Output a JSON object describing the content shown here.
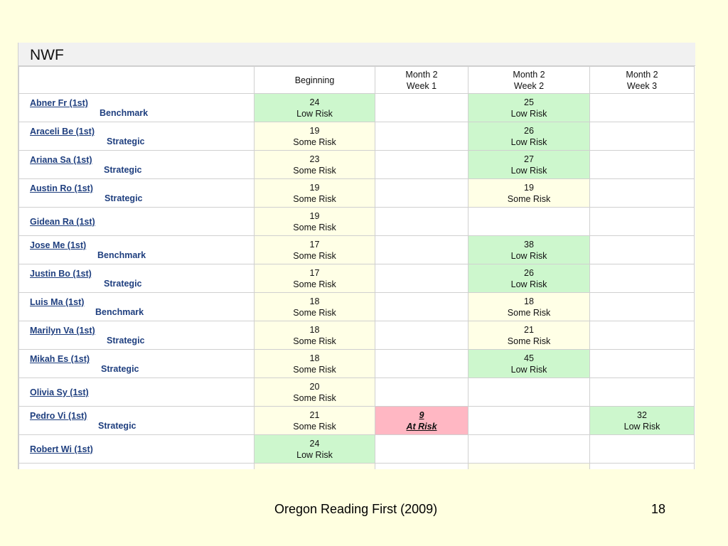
{
  "panel": {
    "title": "NWF"
  },
  "columns": [
    {
      "line1": "Beginning",
      "line2": ""
    },
    {
      "line1": "Month 2",
      "line2": "Week 1"
    },
    {
      "line1": "Month 2",
      "line2": "Week 2"
    },
    {
      "line1": "Month 2",
      "line2": "Week 3"
    }
  ],
  "rows": [
    {
      "name": "Abner Fr (1st)",
      "level": "Benchmark",
      "cells": [
        {
          "score": "24",
          "risk": "Low Risk",
          "status": "low"
        },
        {
          "score": "",
          "risk": "",
          "status": "blank"
        },
        {
          "score": "25",
          "risk": "Low Risk",
          "status": "low"
        },
        {
          "score": "",
          "risk": "",
          "status": "blank"
        }
      ]
    },
    {
      "name": "Araceli Be (1st)",
      "level": "Strategic",
      "cells": [
        {
          "score": "19",
          "risk": "Some Risk",
          "status": "some"
        },
        {
          "score": "",
          "risk": "",
          "status": "blank"
        },
        {
          "score": "26",
          "risk": "Low Risk",
          "status": "low"
        },
        {
          "score": "",
          "risk": "",
          "status": "blank"
        }
      ]
    },
    {
      "name": "Ariana Sa (1st)",
      "level": "Strategic",
      "cells": [
        {
          "score": "23",
          "risk": "Some Risk",
          "status": "some"
        },
        {
          "score": "",
          "risk": "",
          "status": "blank"
        },
        {
          "score": "27",
          "risk": "Low Risk",
          "status": "low"
        },
        {
          "score": "",
          "risk": "",
          "status": "blank"
        }
      ]
    },
    {
      "name": "Austin Ro (1st)",
      "level": "Strategic",
      "cells": [
        {
          "score": "19",
          "risk": "Some Risk",
          "status": "some"
        },
        {
          "score": "",
          "risk": "",
          "status": "blank"
        },
        {
          "score": "19",
          "risk": "Some Risk",
          "status": "some"
        },
        {
          "score": "",
          "risk": "",
          "status": "blank"
        }
      ]
    },
    {
      "name": "Gidean Ra (1st)",
      "level": "",
      "cells": [
        {
          "score": "19",
          "risk": "Some Risk",
          "status": "some"
        },
        {
          "score": "",
          "risk": "",
          "status": "blank"
        },
        {
          "score": "",
          "risk": "",
          "status": "blank"
        },
        {
          "score": "",
          "risk": "",
          "status": "blank"
        }
      ]
    },
    {
      "name": "Jose Me (1st)",
      "level": "Benchmark",
      "cells": [
        {
          "score": "17",
          "risk": "Some Risk",
          "status": "some"
        },
        {
          "score": "",
          "risk": "",
          "status": "blank"
        },
        {
          "score": "38",
          "risk": "Low Risk",
          "status": "low"
        },
        {
          "score": "",
          "risk": "",
          "status": "blank"
        }
      ]
    },
    {
      "name": "Justin Bo (1st)",
      "level": "Strategic",
      "cells": [
        {
          "score": "17",
          "risk": "Some Risk",
          "status": "some"
        },
        {
          "score": "",
          "risk": "",
          "status": "blank"
        },
        {
          "score": "26",
          "risk": "Low Risk",
          "status": "low"
        },
        {
          "score": "",
          "risk": "",
          "status": "blank"
        }
      ]
    },
    {
      "name": "Luis Ma (1st)",
      "level": "Benchmark",
      "cells": [
        {
          "score": "18",
          "risk": "Some Risk",
          "status": "some"
        },
        {
          "score": "",
          "risk": "",
          "status": "blank"
        },
        {
          "score": "18",
          "risk": "Some Risk",
          "status": "some"
        },
        {
          "score": "",
          "risk": "",
          "status": "blank"
        }
      ]
    },
    {
      "name": "Marilyn Va (1st)",
      "level": "Strategic",
      "cells": [
        {
          "score": "18",
          "risk": "Some Risk",
          "status": "some"
        },
        {
          "score": "",
          "risk": "",
          "status": "blank"
        },
        {
          "score": "21",
          "risk": "Some Risk",
          "status": "some"
        },
        {
          "score": "",
          "risk": "",
          "status": "blank"
        }
      ]
    },
    {
      "name": "Mikah Es (1st)",
      "level": "Strategic",
      "cells": [
        {
          "score": "18",
          "risk": "Some Risk",
          "status": "some"
        },
        {
          "score": "",
          "risk": "",
          "status": "blank"
        },
        {
          "score": "45",
          "risk": "Low Risk",
          "status": "low"
        },
        {
          "score": "",
          "risk": "",
          "status": "blank"
        }
      ]
    },
    {
      "name": "Olivia Sy (1st)",
      "level": "",
      "cells": [
        {
          "score": "20",
          "risk": "Some Risk",
          "status": "some"
        },
        {
          "score": "",
          "risk": "",
          "status": "blank"
        },
        {
          "score": "",
          "risk": "",
          "status": "blank"
        },
        {
          "score": "",
          "risk": "",
          "status": "blank"
        }
      ]
    },
    {
      "name": "Pedro Vi (1st)",
      "level": "Strategic",
      "cells": [
        {
          "score": "21",
          "risk": "Some Risk",
          "status": "some"
        },
        {
          "score": "9",
          "risk": "At Risk",
          "status": "at"
        },
        {
          "score": "",
          "risk": "",
          "status": "blank"
        },
        {
          "score": "32",
          "risk": "Low Risk",
          "status": "low"
        }
      ]
    },
    {
      "name": "Robert Wi (1st)",
      "level": "",
      "cells": [
        {
          "score": "24",
          "risk": "Low Risk",
          "status": "low"
        },
        {
          "score": "",
          "risk": "",
          "status": "blank"
        },
        {
          "score": "",
          "risk": "",
          "status": "blank"
        },
        {
          "score": "",
          "risk": "",
          "status": "blank"
        }
      ]
    },
    {
      "name": "",
      "level": "",
      "cells": [
        {
          "score": "",
          "risk": "",
          "status": "some"
        },
        {
          "score": "",
          "risk": "",
          "status": "blank"
        },
        {
          "score": "",
          "risk": "",
          "status": "some"
        },
        {
          "score": "",
          "risk": "",
          "status": "blank"
        }
      ]
    }
  ],
  "footer": {
    "text": "Oregon Reading First (2009)",
    "page": "18"
  },
  "colors": {
    "low_risk": "#cdf7cd",
    "some_risk": "#ffffe6",
    "at_risk": "#ffb7c3",
    "slide_bg": "#ffffe0"
  }
}
